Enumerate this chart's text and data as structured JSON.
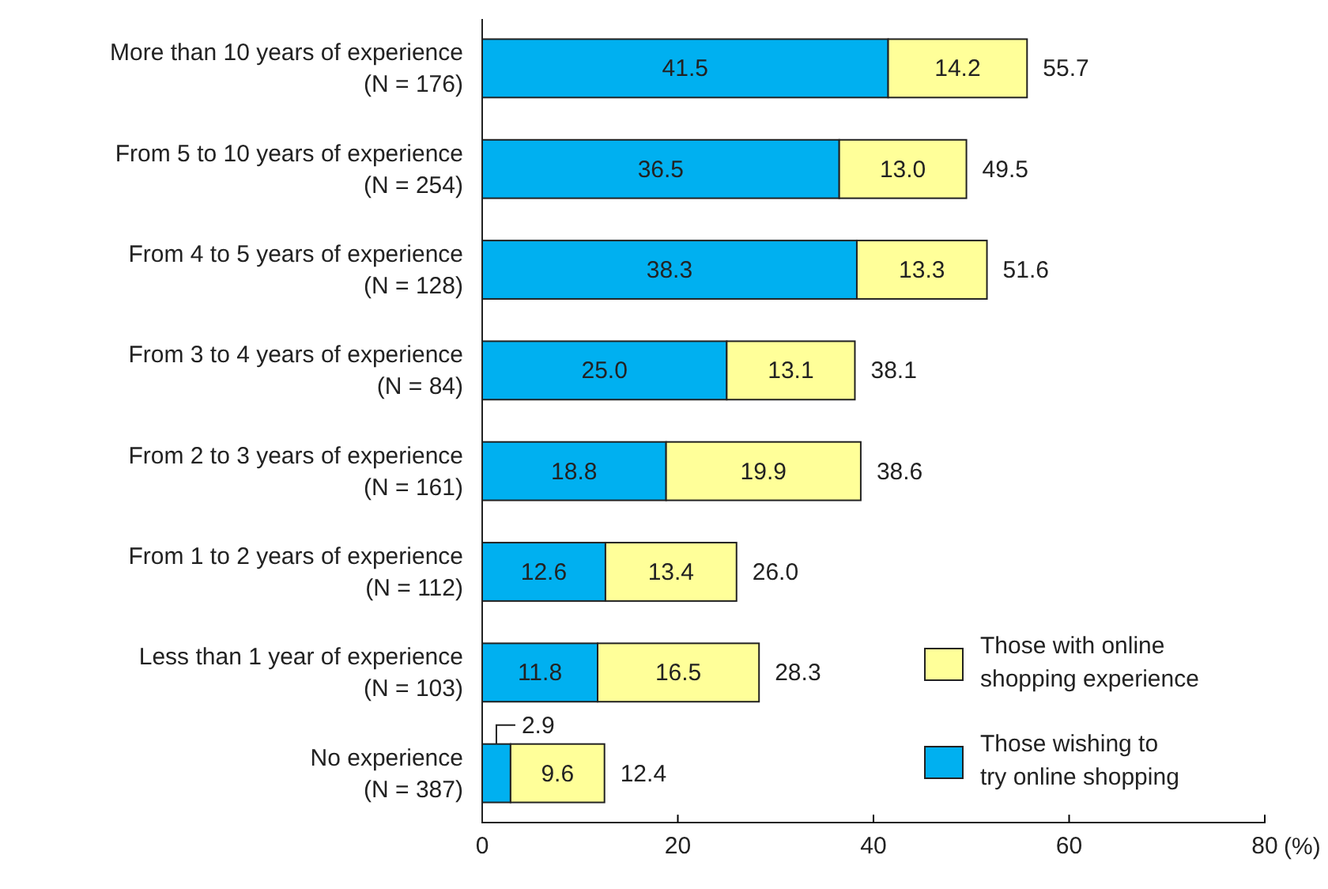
{
  "chart_data": {
    "type": "bar",
    "orientation": "horizontal",
    "stacked": true,
    "categories": [
      "More than 10 years of experience\n(N = 176)",
      "From 5 to 10 years of experience\n(N = 254)",
      "From 4 to 5 years of experience\n(N = 128)",
      "From 3 to 4 years of experience\n(N = 84)",
      "From 2 to 3 years of experience\n(N = 161)",
      "From 1 to 2 years of experience\n(N = 112)",
      "Less than 1 year of experience\n(N = 103)",
      "No experience\n(N = 387)"
    ],
    "series": [
      {
        "name": "Those wishing to try online shopping",
        "color": "#00b0f0",
        "values": [
          41.5,
          36.5,
          38.3,
          25.0,
          18.8,
          12.6,
          11.8,
          2.9
        ],
        "value_labels": [
          "41.5",
          "36.5",
          "38.3",
          "25.0",
          "18.8",
          "12.6",
          "11.8",
          "2.9"
        ]
      },
      {
        "name": "Those with online shopping experience",
        "color": "#ffff99",
        "values": [
          14.2,
          13.0,
          13.3,
          13.1,
          19.9,
          13.4,
          16.5,
          9.6
        ],
        "value_labels": [
          "14.2",
          "13.0",
          "13.3",
          "13.1",
          "19.9",
          "13.4",
          "16.5",
          "9.6"
        ]
      }
    ],
    "totals": [
      "55.7",
      "49.5",
      "51.6",
      "38.1",
      "38.6",
      "26.0",
      "28.3",
      "12.4"
    ],
    "xlim": [
      0,
      80
    ],
    "xticks": [
      0,
      20,
      40,
      60,
      80
    ],
    "xlabel": "(%)",
    "legend": "bottom right"
  }
}
